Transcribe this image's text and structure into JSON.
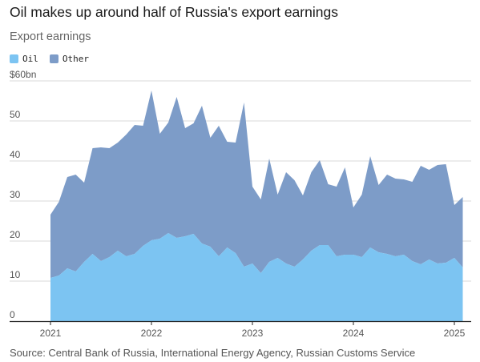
{
  "title": "Oil makes up around half of Russia's export earnings",
  "subtitle": "Export earnings",
  "source": "Source: Central Bank of Russia, International Energy Agency, Russian Customs Service",
  "colors": {
    "oil": "#7cc4f2",
    "other": "#7d9cc8",
    "grid": "#d9d9d9",
    "axis": "#222222"
  },
  "chart_data": {
    "type": "area",
    "stacked": true,
    "title": "Oil makes up around half of Russia's export earnings",
    "subtitle": "Export earnings",
    "xlabel": "",
    "ylabel": "",
    "ylim": [
      0,
      60
    ],
    "y_ticks": [
      {
        "value": 0,
        "label": "0"
      },
      {
        "value": 10,
        "label": "10"
      },
      {
        "value": 20,
        "label": "20"
      },
      {
        "value": 30,
        "label": "30"
      },
      {
        "value": 40,
        "label": "40"
      },
      {
        "value": 50,
        "label": "50"
      },
      {
        "value": 60,
        "label": "$60bn"
      }
    ],
    "x_ticks": [
      "2021",
      "2022",
      "2023",
      "2024",
      "2025"
    ],
    "x_start": "2021-01",
    "legend_position": "top-left",
    "grid": true,
    "x": [
      "2021-01",
      "2021-02",
      "2021-03",
      "2021-04",
      "2021-05",
      "2021-06",
      "2021-07",
      "2021-08",
      "2021-09",
      "2021-10",
      "2021-11",
      "2021-12",
      "2022-01",
      "2022-02",
      "2022-03",
      "2022-04",
      "2022-05",
      "2022-06",
      "2022-07",
      "2022-08",
      "2022-09",
      "2022-10",
      "2022-11",
      "2022-12",
      "2023-01",
      "2023-02",
      "2023-03",
      "2023-04",
      "2023-05",
      "2023-06",
      "2023-07",
      "2023-08",
      "2023-09",
      "2023-10",
      "2023-11",
      "2023-12",
      "2024-01",
      "2024-02",
      "2024-03",
      "2024-04",
      "2024-05",
      "2024-06",
      "2024-07",
      "2024-08",
      "2024-09",
      "2024-10",
      "2024-11",
      "2024-12",
      "2025-01",
      "2025-02"
    ],
    "series": [
      {
        "name": "Oil",
        "color": "#7cc4f2",
        "values": [
          10.8,
          11.4,
          13.2,
          12.4,
          14.8,
          16.8,
          15.0,
          16.0,
          17.6,
          16.2,
          16.8,
          18.8,
          20.2,
          20.6,
          22.0,
          20.8,
          21.2,
          21.8,
          19.4,
          18.6,
          16.2,
          18.4,
          17.0,
          13.6,
          14.4,
          12.0,
          14.8,
          15.8,
          14.4,
          13.6,
          15.4,
          17.6,
          19.0,
          19.0,
          16.2,
          16.6,
          16.6,
          16.0,
          18.4,
          17.2,
          16.8,
          16.2,
          16.6,
          15.0,
          14.2,
          15.4,
          14.4,
          14.6,
          15.8,
          13.4
        ]
      },
      {
        "name": "Other",
        "color": "#7d9cc8",
        "values": [
          15.8,
          18.4,
          22.8,
          24.2,
          19.8,
          26.4,
          28.4,
          27.2,
          27.0,
          30.4,
          32.2,
          30.0,
          37.4,
          26.2,
          27.6,
          35.2,
          27.0,
          27.6,
          34.4,
          27.2,
          32.6,
          26.4,
          27.6,
          41.0,
          19.2,
          18.4,
          25.8,
          15.8,
          22.8,
          21.6,
          16.0,
          19.6,
          21.2,
          15.2,
          17.4,
          21.8,
          11.8,
          15.6,
          22.8,
          16.8,
          19.8,
          19.4,
          18.8,
          19.8,
          24.6,
          22.4,
          24.6,
          24.6,
          13.2,
          17.6
        ]
      }
    ]
  }
}
